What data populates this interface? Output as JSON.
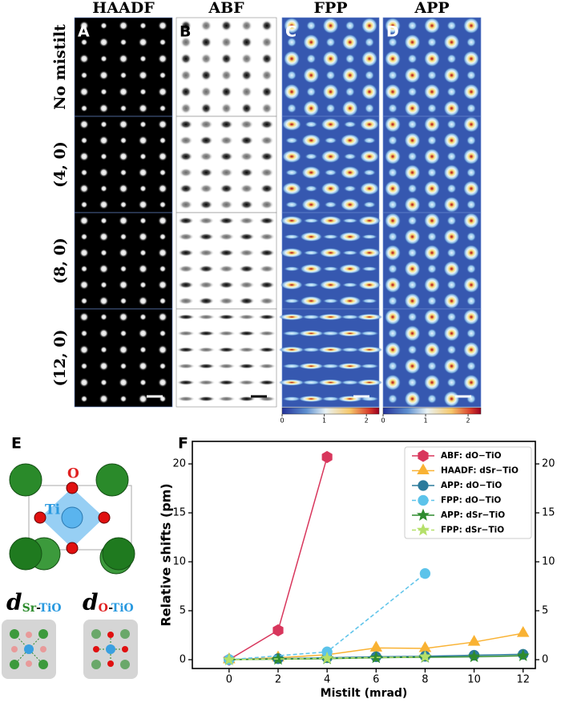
{
  "panels": {
    "labels": [
      "A",
      "B",
      "C",
      "D"
    ],
    "columns": [
      "HAADF",
      "ABF",
      "FPP",
      "APP"
    ],
    "rows": [
      "No mistilt",
      "(4, 0)",
      "(8, 0)",
      "(12, 0)"
    ],
    "colorbar": {
      "clim": [
        0,
        2.3
      ],
      "ticks": [
        0,
        1,
        2
      ]
    }
  },
  "structure": {
    "label": "E",
    "atoms": [
      "Sr",
      "O",
      "Ti"
    ],
    "distances": [
      {
        "symbol": "d",
        "parts": [
          "Sr",
          "-",
          "TiO"
        ]
      },
      {
        "symbol": "d",
        "parts": [
          "O",
          "-",
          "TiO"
        ]
      }
    ]
  },
  "chart_data": {
    "type": "line",
    "label": "F",
    "x_label": "Mistilt (mrad)",
    "y_label": "Relative shifts (pm)",
    "xlim": [
      -1.5,
      12.5
    ],
    "xticks": [
      0,
      2,
      4,
      6,
      8,
      10,
      12
    ],
    "ylim": [
      -0.9,
      22.3
    ],
    "yticks": [
      0,
      5,
      10,
      15,
      20
    ],
    "y2lim": [
      -0.9,
      22.3
    ],
    "y2ticks": [
      0,
      5,
      10,
      15,
      20
    ],
    "legend": "upper right",
    "series": [
      {
        "name": "ABF: dO−TiO",
        "color": "#d8365c",
        "marker": "hexagon",
        "dashed": false,
        "x": [
          0,
          2,
          4
        ],
        "values": [
          0,
          3.0,
          20.7
        ]
      },
      {
        "name": "HAADF: dSr−TiO",
        "color": "#f9b233",
        "marker": "triangle",
        "dashed": false,
        "x": [
          0,
          2,
          4,
          6,
          8,
          10,
          12
        ],
        "values": [
          0,
          0.2,
          0.5,
          1.2,
          1.15,
          1.8,
          2.7
        ]
      },
      {
        "name": "APP: dO−TiO",
        "color": "#2b7a9b",
        "marker": "circle",
        "dashed": false,
        "x": [
          0,
          2,
          4,
          6,
          8,
          10,
          12
        ],
        "values": [
          0,
          0.1,
          0.2,
          0.3,
          0.35,
          0.45,
          0.55
        ]
      },
      {
        "name": "FPP: dO−TiO",
        "color": "#5cc3ea",
        "marker": "circle",
        "dashed": true,
        "x": [
          0,
          4,
          8
        ],
        "values": [
          0,
          0.8,
          8.8
        ]
      },
      {
        "name": "APP: dSr−TiO",
        "color": "#2e8b2e",
        "marker": "star",
        "dashed": false,
        "x": [
          0,
          2,
          4,
          6,
          8,
          10,
          12
        ],
        "values": [
          0,
          0.05,
          0.1,
          0.2,
          0.25,
          0.3,
          0.4
        ]
      },
      {
        "name": "FPP: dSr−TiO",
        "color": "#b5e06a",
        "marker": "star",
        "dashed": true,
        "x": [
          0,
          4,
          8
        ],
        "values": [
          0,
          0.15,
          0.3
        ]
      }
    ]
  }
}
